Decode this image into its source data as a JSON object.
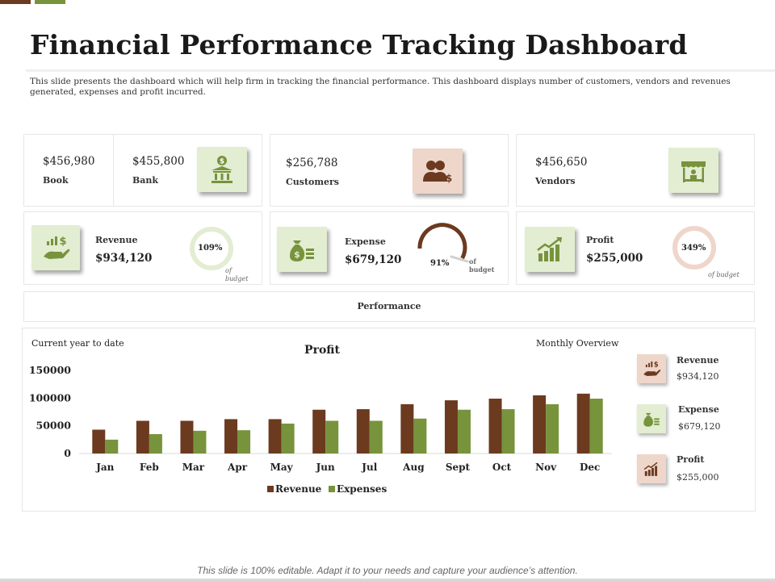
{
  "header": {
    "title": "Financial Performance Tracking Dashboard",
    "description": "This slide presents the dashboard which will help firm in tracking the financial performance. This dashboard displays number of customers, vendors and revenues generated, expenses and profit incurred."
  },
  "colors": {
    "brown": "#6b3a1f",
    "green": "#77933c",
    "tile_green": "#e3edd2",
    "tile_pink": "#efd6cb"
  },
  "kpis": {
    "book": {
      "value": "$456,980",
      "label": "Book"
    },
    "bank": {
      "value": "$455,800",
      "label": "Bank",
      "icon": "bank-icon"
    },
    "customers": {
      "value": "$256,788",
      "label": "Customers",
      "icon": "customers-icon"
    },
    "vendors": {
      "value": "$456,650",
      "label": "Vendors",
      "icon": "vendor-stall-icon"
    }
  },
  "metrics": {
    "revenue": {
      "label": "Revenue",
      "value": "$934,120",
      "percent_text": "109%",
      "percent": 109,
      "note_line1": "of",
      "note_line2": "budget",
      "icon": "hand-money-icon"
    },
    "expense": {
      "label": "Expense",
      "value": "$679,120",
      "percent_text": "91%",
      "percent": 91,
      "note_line1": "of",
      "note_line2": "budget",
      "icon": "money-bag-icon"
    },
    "profit": {
      "label": "Profit",
      "value": "$255,000",
      "percent_text": "349%",
      "percent": 349,
      "note": "of budget",
      "icon": "growth-chart-icon"
    }
  },
  "performance": {
    "title": "Performance"
  },
  "chart_section": {
    "left_caption": "Current year to date",
    "right_caption": "Monthly Overview"
  },
  "chart_data": {
    "type": "bar",
    "title": "Profit",
    "categories": [
      "Jan",
      "Feb",
      "Mar",
      "Apr",
      "May",
      "Jun",
      "Jul",
      "Aug",
      "Sept",
      "Oct",
      "Nov",
      "Dec"
    ],
    "series": [
      {
        "name": "Revenue",
        "color": "#6b3a1f",
        "values": [
          43000,
          59000,
          59000,
          62000,
          62000,
          79000,
          80000,
          89000,
          96000,
          99000,
          105000,
          108000
        ]
      },
      {
        "name": "Expenses",
        "color": "#77933c",
        "values": [
          25000,
          35000,
          41000,
          42000,
          54000,
          59000,
          59000,
          63000,
          79000,
          80000,
          89000,
          99000
        ]
      }
    ],
    "ylim": [
      0,
      150000
    ],
    "yticks": [
      "0",
      "50000",
      "100000",
      "150000"
    ],
    "grid": false,
    "legend": "bottom"
  },
  "overview": [
    {
      "label": "Revenue",
      "value": "$934,120",
      "icon": "hand-money-icon"
    },
    {
      "label": "Expense",
      "value": "$679,120",
      "icon": "money-bag-icon"
    },
    {
      "label": "Profit",
      "value": "$255,000",
      "icon": "growth-chart-icon"
    }
  ],
  "footer": "This slide is 100% editable. Adapt it to your needs and capture your audience’s attention."
}
